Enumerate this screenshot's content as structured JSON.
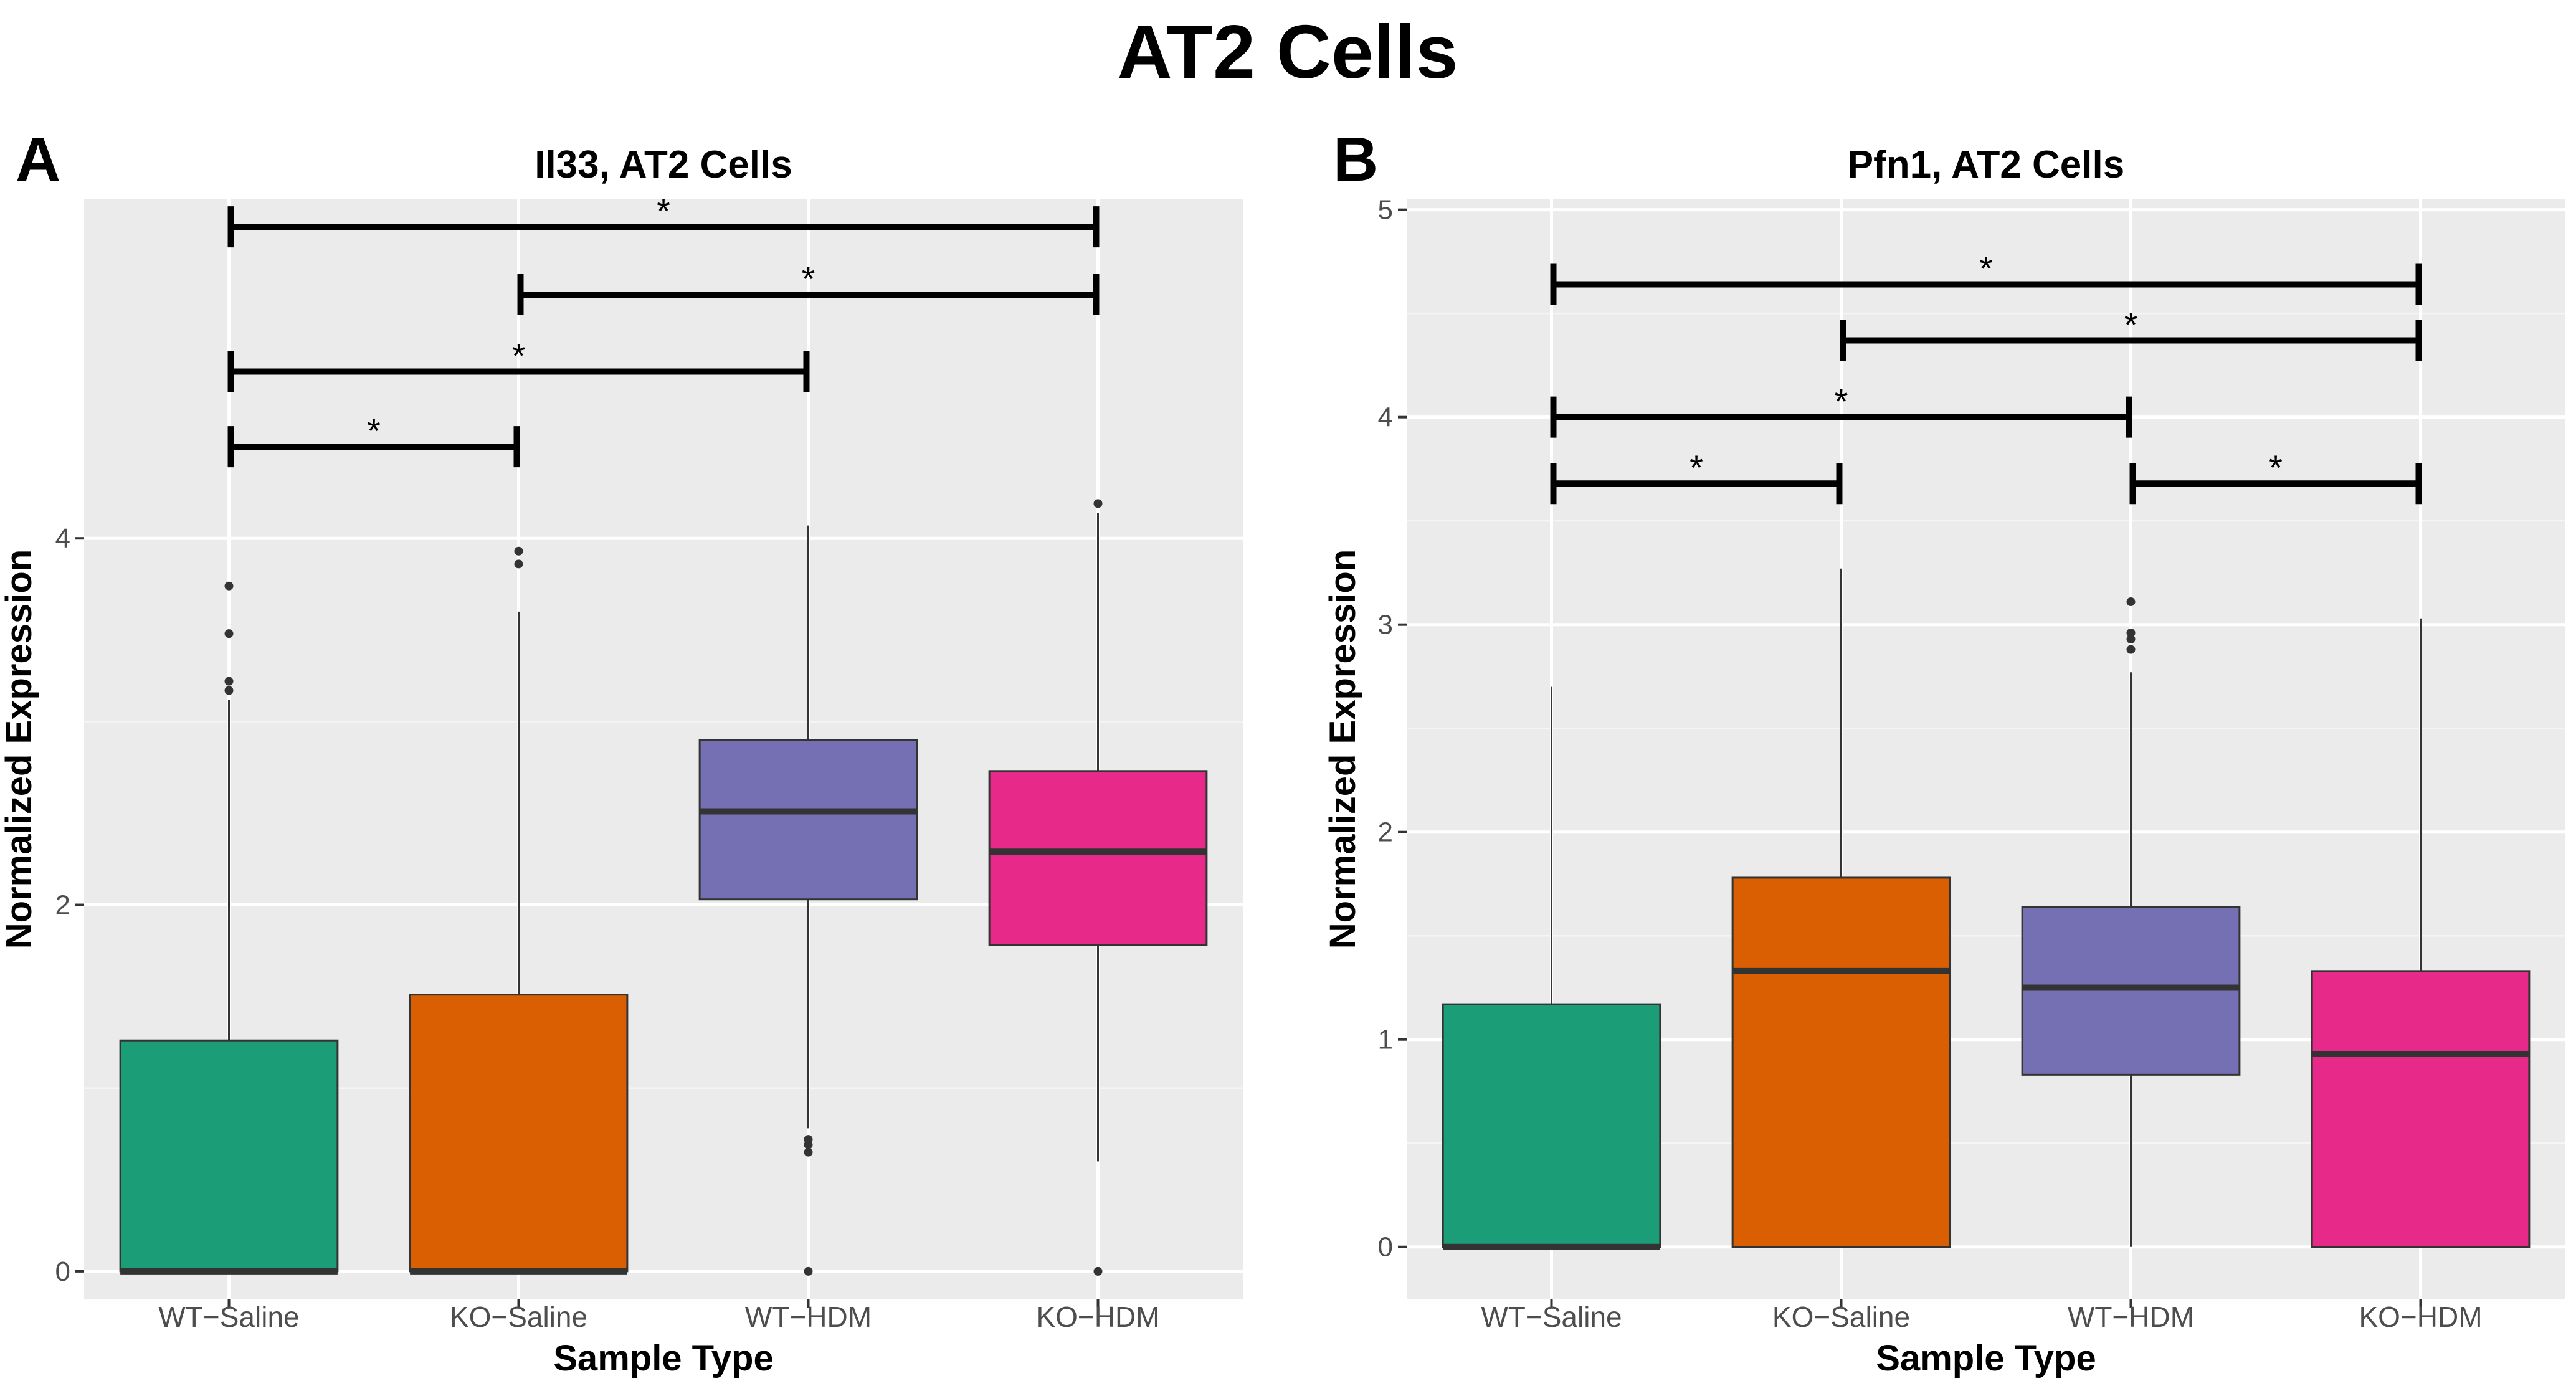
{
  "figure_title": "AT2 Cells",
  "chart_data": [
    {
      "type": "boxplot",
      "panel_label": "A",
      "title": "Il33, AT2 Cells",
      "xlabel": "Sample Type",
      "ylabel": "Normalized Expression",
      "categories": [
        "WT−Saline",
        "KO−Saline",
        "WT−HDM",
        "KO−HDM"
      ],
      "colors": [
        "#1b9e77",
        "#d95f02",
        "#7570b3",
        "#e7298a"
      ],
      "ylim": [
        -0.15,
        5.85
      ],
      "yticks": [
        0,
        2,
        4
      ],
      "grid": true,
      "boxes": [
        {
          "q1": 0,
          "median": 0,
          "q3": 1.26,
          "whisker_low": 0,
          "whisker_high": 3.12,
          "outliers": [
            3.17,
            3.22,
            3.48,
            3.74
          ]
        },
        {
          "q1": 0,
          "median": 0,
          "q3": 1.51,
          "whisker_low": 0,
          "whisker_high": 3.6,
          "outliers": [
            3.86,
            3.93
          ]
        },
        {
          "q1": 2.03,
          "median": 2.51,
          "q3": 2.9,
          "whisker_low": 0.78,
          "whisker_high": 4.07,
          "outliers": [
            0,
            0.65,
            0.69,
            0.72
          ]
        },
        {
          "q1": 1.78,
          "median": 2.29,
          "q3": 2.73,
          "whisker_low": 0.6,
          "whisker_high": 4.14,
          "outliers": [
            0,
            4.19
          ]
        }
      ],
      "significance": [
        {
          "from": 0,
          "to": 3,
          "y": 5.7,
          "label": "*"
        },
        {
          "from": 1,
          "to": 3,
          "y": 5.33,
          "label": "*"
        },
        {
          "from": 0,
          "to": 2,
          "y": 4.91,
          "label": "*"
        },
        {
          "from": 0,
          "to": 1,
          "y": 4.5,
          "label": "*"
        }
      ]
    },
    {
      "type": "boxplot",
      "panel_label": "B",
      "title": "Pfn1, AT2 Cells",
      "xlabel": "Sample Type",
      "ylabel": "Normalized Expression",
      "categories": [
        "WT−Saline",
        "KO−Saline",
        "WT−HDM",
        "KO−HDM"
      ],
      "colors": [
        "#1b9e77",
        "#d95f02",
        "#7570b3",
        "#e7298a"
      ],
      "ylim": [
        -0.25,
        5.05
      ],
      "yticks": [
        0,
        1,
        2,
        3,
        4,
        5
      ],
      "grid": true,
      "boxes": [
        {
          "q1": 0,
          "median": 0,
          "q3": 1.17,
          "whisker_low": 0,
          "whisker_high": 2.7,
          "outliers": []
        },
        {
          "q1": 0,
          "median": 1.33,
          "q3": 1.78,
          "whisker_low": 0,
          "whisker_high": 3.27,
          "outliers": []
        },
        {
          "q1": 0.83,
          "median": 1.25,
          "q3": 1.64,
          "whisker_low": 0,
          "whisker_high": 2.77,
          "outliers": [
            2.88,
            2.93,
            2.96,
            3.11
          ]
        },
        {
          "q1": 0,
          "median": 0.93,
          "q3": 1.33,
          "whisker_low": 0,
          "whisker_high": 3.03,
          "outliers": []
        }
      ],
      "significance": [
        {
          "from": 0,
          "to": 3,
          "y": 4.64,
          "label": "*"
        },
        {
          "from": 1,
          "to": 3,
          "y": 4.37,
          "label": "*"
        },
        {
          "from": 0,
          "to": 2,
          "y": 4.0,
          "label": "*"
        },
        {
          "from": 0,
          "to": 1,
          "y": 3.68,
          "label": "*"
        },
        {
          "from": 2,
          "to": 3,
          "y": 3.68,
          "label": "*"
        }
      ]
    }
  ]
}
